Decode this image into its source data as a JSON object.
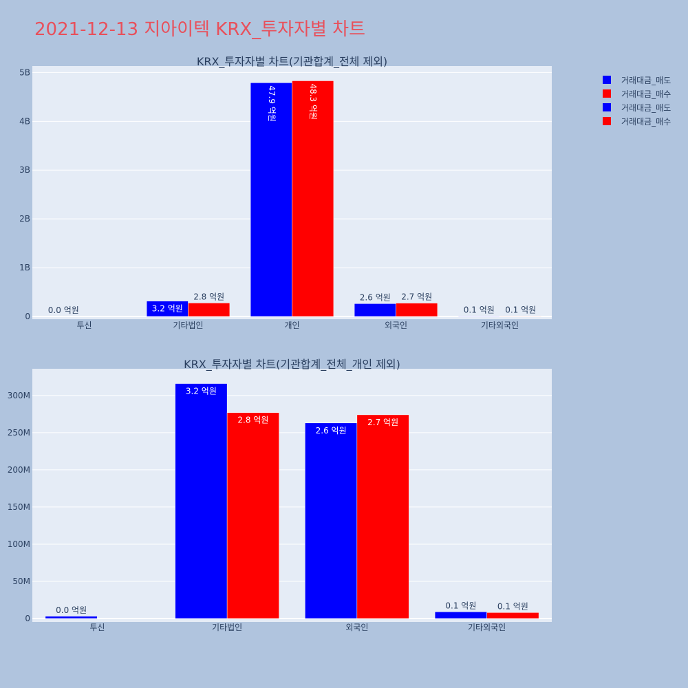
{
  "page": {
    "title": "2021-12-13 지아이텍 KRX_투자자별 차트"
  },
  "colors": {
    "sell": "#0000ff",
    "buy": "#ff0000"
  },
  "legend": [
    {
      "label": "거래대금_매도",
      "color": "#0000ff"
    },
    {
      "label": "거래대금_매수",
      "color": "#ff0000"
    },
    {
      "label": "거래대금_매도",
      "color": "#0000ff"
    },
    {
      "label": "거래대금_매수",
      "color": "#ff0000"
    }
  ],
  "chart_data": [
    {
      "type": "bar",
      "title": "KRX_투자자별 차트(기관합계_전체 제외)",
      "categories": [
        "투신",
        "기타법인",
        "개인",
        "외국인",
        "기타외국인"
      ],
      "ylim": [
        0,
        5000000000
      ],
      "yticks": [
        0,
        1000000000,
        2000000000,
        3000000000,
        4000000000,
        5000000000
      ],
      "ytick_labels": [
        "0",
        "1B",
        "2B",
        "3B",
        "4B",
        "5B"
      ],
      "series": [
        {
          "name": "거래대금_매도",
          "values": [
            3000000,
            316000000,
            4790000000,
            263000000,
            9000000
          ],
          "labels": [
            "0.0 억원",
            "3.2 억원",
            "47.9 억원",
            "2.6 억원",
            "0.1 억원"
          ]
        },
        {
          "name": "거래대금_매수",
          "values": [
            0,
            277000000,
            4830000000,
            274000000,
            8000000
          ],
          "labels": [
            "",
            "2.8 억원",
            "48.3 억원",
            "2.7 억원",
            "0.1 억원"
          ]
        }
      ]
    },
    {
      "type": "bar",
      "title": "KRX_투자자별 차트(기관합계_전체_개인 제외)",
      "categories": [
        "투신",
        "기타법인",
        "외국인",
        "기타외국인"
      ],
      "ylim": [
        0,
        335000000
      ],
      "yticks": [
        0,
        50000000,
        100000000,
        150000000,
        200000000,
        250000000,
        300000000
      ],
      "ytick_labels": [
        "0",
        "50M",
        "100M",
        "150M",
        "200M",
        "250M",
        "300M"
      ],
      "series": [
        {
          "name": "거래대금_매도",
          "values": [
            3000000,
            316000000,
            263000000,
            9000000
          ],
          "labels": [
            "0.0 억원",
            "3.2 억원",
            "2.6 억원",
            "0.1 억원"
          ]
        },
        {
          "name": "거래대금_매수",
          "values": [
            0,
            277000000,
            274000000,
            8000000
          ],
          "labels": [
            "",
            "2.8 억원",
            "2.7 억원",
            "0.1 억원"
          ]
        }
      ]
    }
  ]
}
